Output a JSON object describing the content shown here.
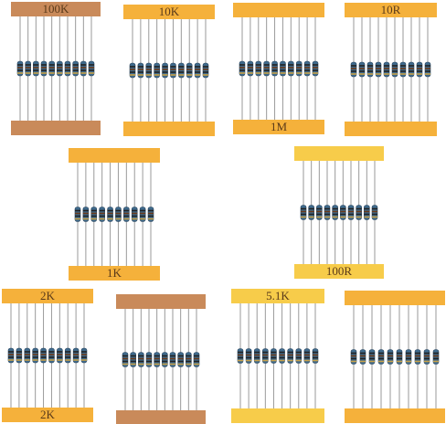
{
  "packs": [
    {
      "top_label": "100K"
    },
    {
      "top_label": "10K"
    },
    {
      "bottom_label": "1M"
    },
    {
      "top_label": "10R"
    },
    {
      "bottom_label": "1K"
    },
    {
      "bottom_label": "100R"
    },
    {
      "top_label": "2K",
      "bottom_label": "2K"
    },
    {},
    {
      "top_label": "5.1K"
    },
    {}
  ]
}
